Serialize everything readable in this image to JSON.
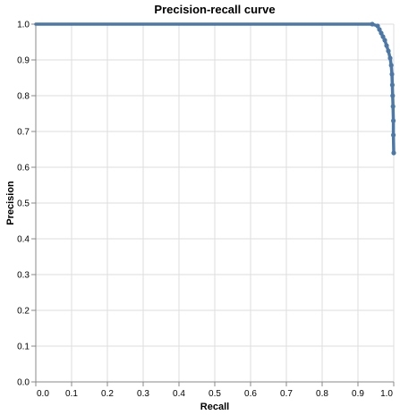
{
  "chart_data": {
    "type": "line",
    "title": "Precision-recall curve",
    "xlabel": "Recall",
    "ylabel": "Precision",
    "xlim": [
      0,
      1
    ],
    "ylim": [
      0,
      1
    ],
    "x_ticks": [
      "0.0",
      "0.1",
      "0.2",
      "0.3",
      "0.4",
      "0.5",
      "0.6",
      "0.7",
      "0.8",
      "0.9",
      "1.0"
    ],
    "y_ticks": [
      "0.0",
      "0.1",
      "0.2",
      "0.3",
      "0.4",
      "0.5",
      "0.6",
      "0.7",
      "0.8",
      "0.9",
      "1.0"
    ],
    "grid": true,
    "series": [
      {
        "color": "#4c78a8",
        "points": [
          {
            "x": 0.0,
            "y": 1.0
          },
          {
            "x": 0.2,
            "y": 1.0
          },
          {
            "x": 0.5,
            "y": 1.0
          },
          {
            "x": 0.8,
            "y": 1.0
          },
          {
            "x": 0.94,
            "y": 1.0
          },
          {
            "x": 0.955,
            "y": 0.995
          },
          {
            "x": 0.96,
            "y": 0.985
          },
          {
            "x": 0.965,
            "y": 0.975
          },
          {
            "x": 0.97,
            "y": 0.965
          },
          {
            "x": 0.975,
            "y": 0.955
          },
          {
            "x": 0.98,
            "y": 0.94
          },
          {
            "x": 0.985,
            "y": 0.925
          },
          {
            "x": 0.99,
            "y": 0.905
          },
          {
            "x": 0.993,
            "y": 0.885
          },
          {
            "x": 0.995,
            "y": 0.86
          },
          {
            "x": 0.996,
            "y": 0.83
          },
          {
            "x": 0.997,
            "y": 0.8
          },
          {
            "x": 0.998,
            "y": 0.77
          },
          {
            "x": 0.999,
            "y": 0.73
          },
          {
            "x": 0.999,
            "y": 0.69
          },
          {
            "x": 1.0,
            "y": 0.64
          }
        ]
      }
    ]
  }
}
